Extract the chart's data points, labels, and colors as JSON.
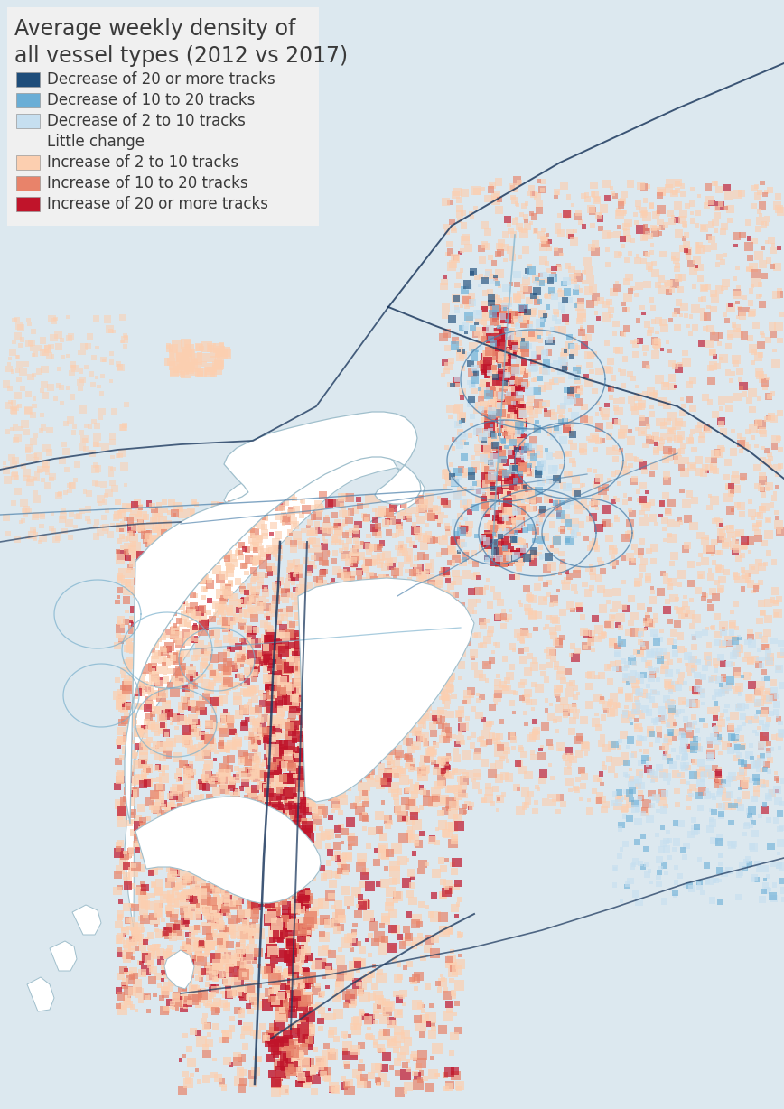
{
  "title_line1": "Average weekly density of",
  "title_line2": "all vessel types (2012 vs 2017)",
  "legend_entries": [
    {
      "label": "Decrease of 20 or more tracks",
      "color": "#1e4d7a"
    },
    {
      "label": "Decrease of 10 to 20 tracks",
      "color": "#6aaed6"
    },
    {
      "label": "Decrease of 2 to 10 tracks",
      "color": "#c6dff0"
    },
    {
      "label": "Little change",
      "color": null
    },
    {
      "label": "Increase of 2 to 10 tracks",
      "color": "#fccfb0"
    },
    {
      "label": "Increase of 10 to 20 tracks",
      "color": "#e8836a"
    },
    {
      "label": "Increase of 20 or more tracks",
      "color": "#c0142a"
    }
  ],
  "bg_color": "#dce8ef",
  "legend_bg": "#f0f0f0",
  "sea_color": "#dce8ef",
  "land_color": "#ffffff",
  "land_edge": "#a0bfcc",
  "dark_blue": "#1e3a5f",
  "mid_blue": "#4a7faa",
  "light_blue_line": "#7ab0cc",
  "figsize": [
    8.68,
    12.28
  ],
  "dpi": 100
}
